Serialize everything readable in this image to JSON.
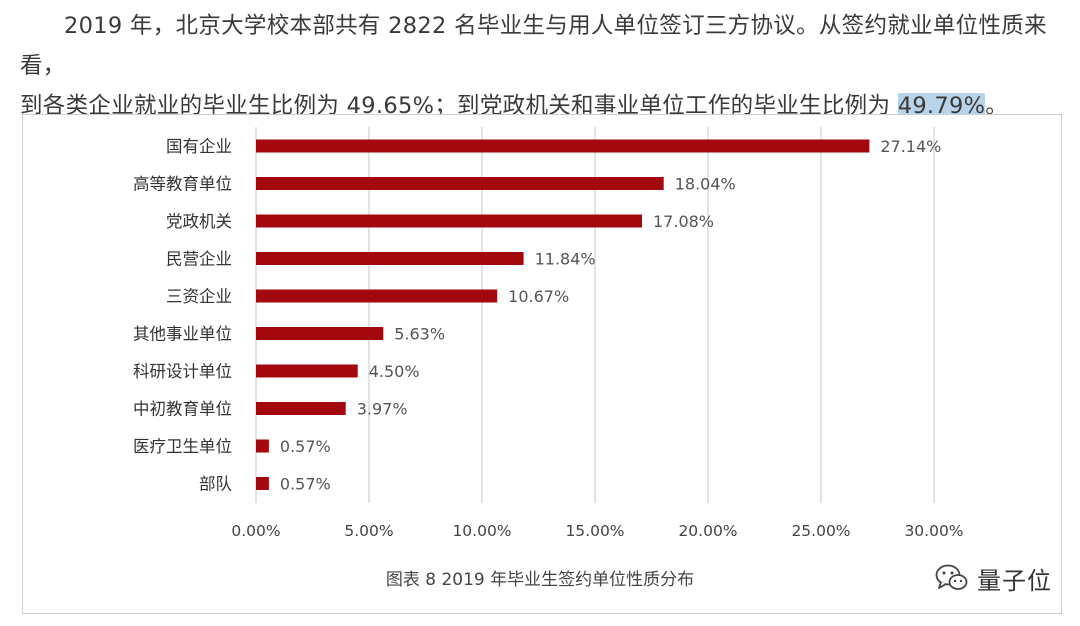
{
  "paragraph": {
    "line1": "2019 年，北京大学校本部共有 2822 名毕业生与用人单位签订三方协议。从签约就业单位性质来看，",
    "line2_prefix": "到各类企业就业的毕业生比例为 49.65%；到党政机关和事业单位工作的毕业生比例为 ",
    "line2_highlight": "49.79%",
    "line2_suffix": "。"
  },
  "watermark": {
    "text": "量子位",
    "icon": "wechat-icon"
  },
  "colors": {
    "bar": "#a3080f",
    "grid": "#d0d0d0",
    "highlight": "#b8d4ea"
  },
  "chart_data": {
    "type": "bar",
    "orientation": "horizontal",
    "title": "图表 8  2019 年毕业生签约单位性质分布",
    "categories": [
      "国有企业",
      "高等教育单位",
      "党政机关",
      "民营企业",
      "三资企业",
      "其他事业单位",
      "科研设计单位",
      "中初教育单位",
      "医疗卫生单位",
      "部队"
    ],
    "values": [
      27.14,
      18.04,
      17.08,
      11.84,
      10.67,
      5.63,
      4.5,
      3.97,
      0.57,
      0.57
    ],
    "data_labels": [
      "27.14%",
      "18.04%",
      "17.08%",
      "11.84%",
      "10.67%",
      "5.63%",
      "4.50%",
      "3.97%",
      "0.57%",
      "0.57%"
    ],
    "xlim": [
      0,
      30
    ],
    "x_ticks": [
      "0.00%",
      "5.00%",
      "10.00%",
      "15.00%",
      "20.00%",
      "25.00%",
      "30.00%"
    ],
    "grid": "vertical",
    "legend": "none"
  }
}
